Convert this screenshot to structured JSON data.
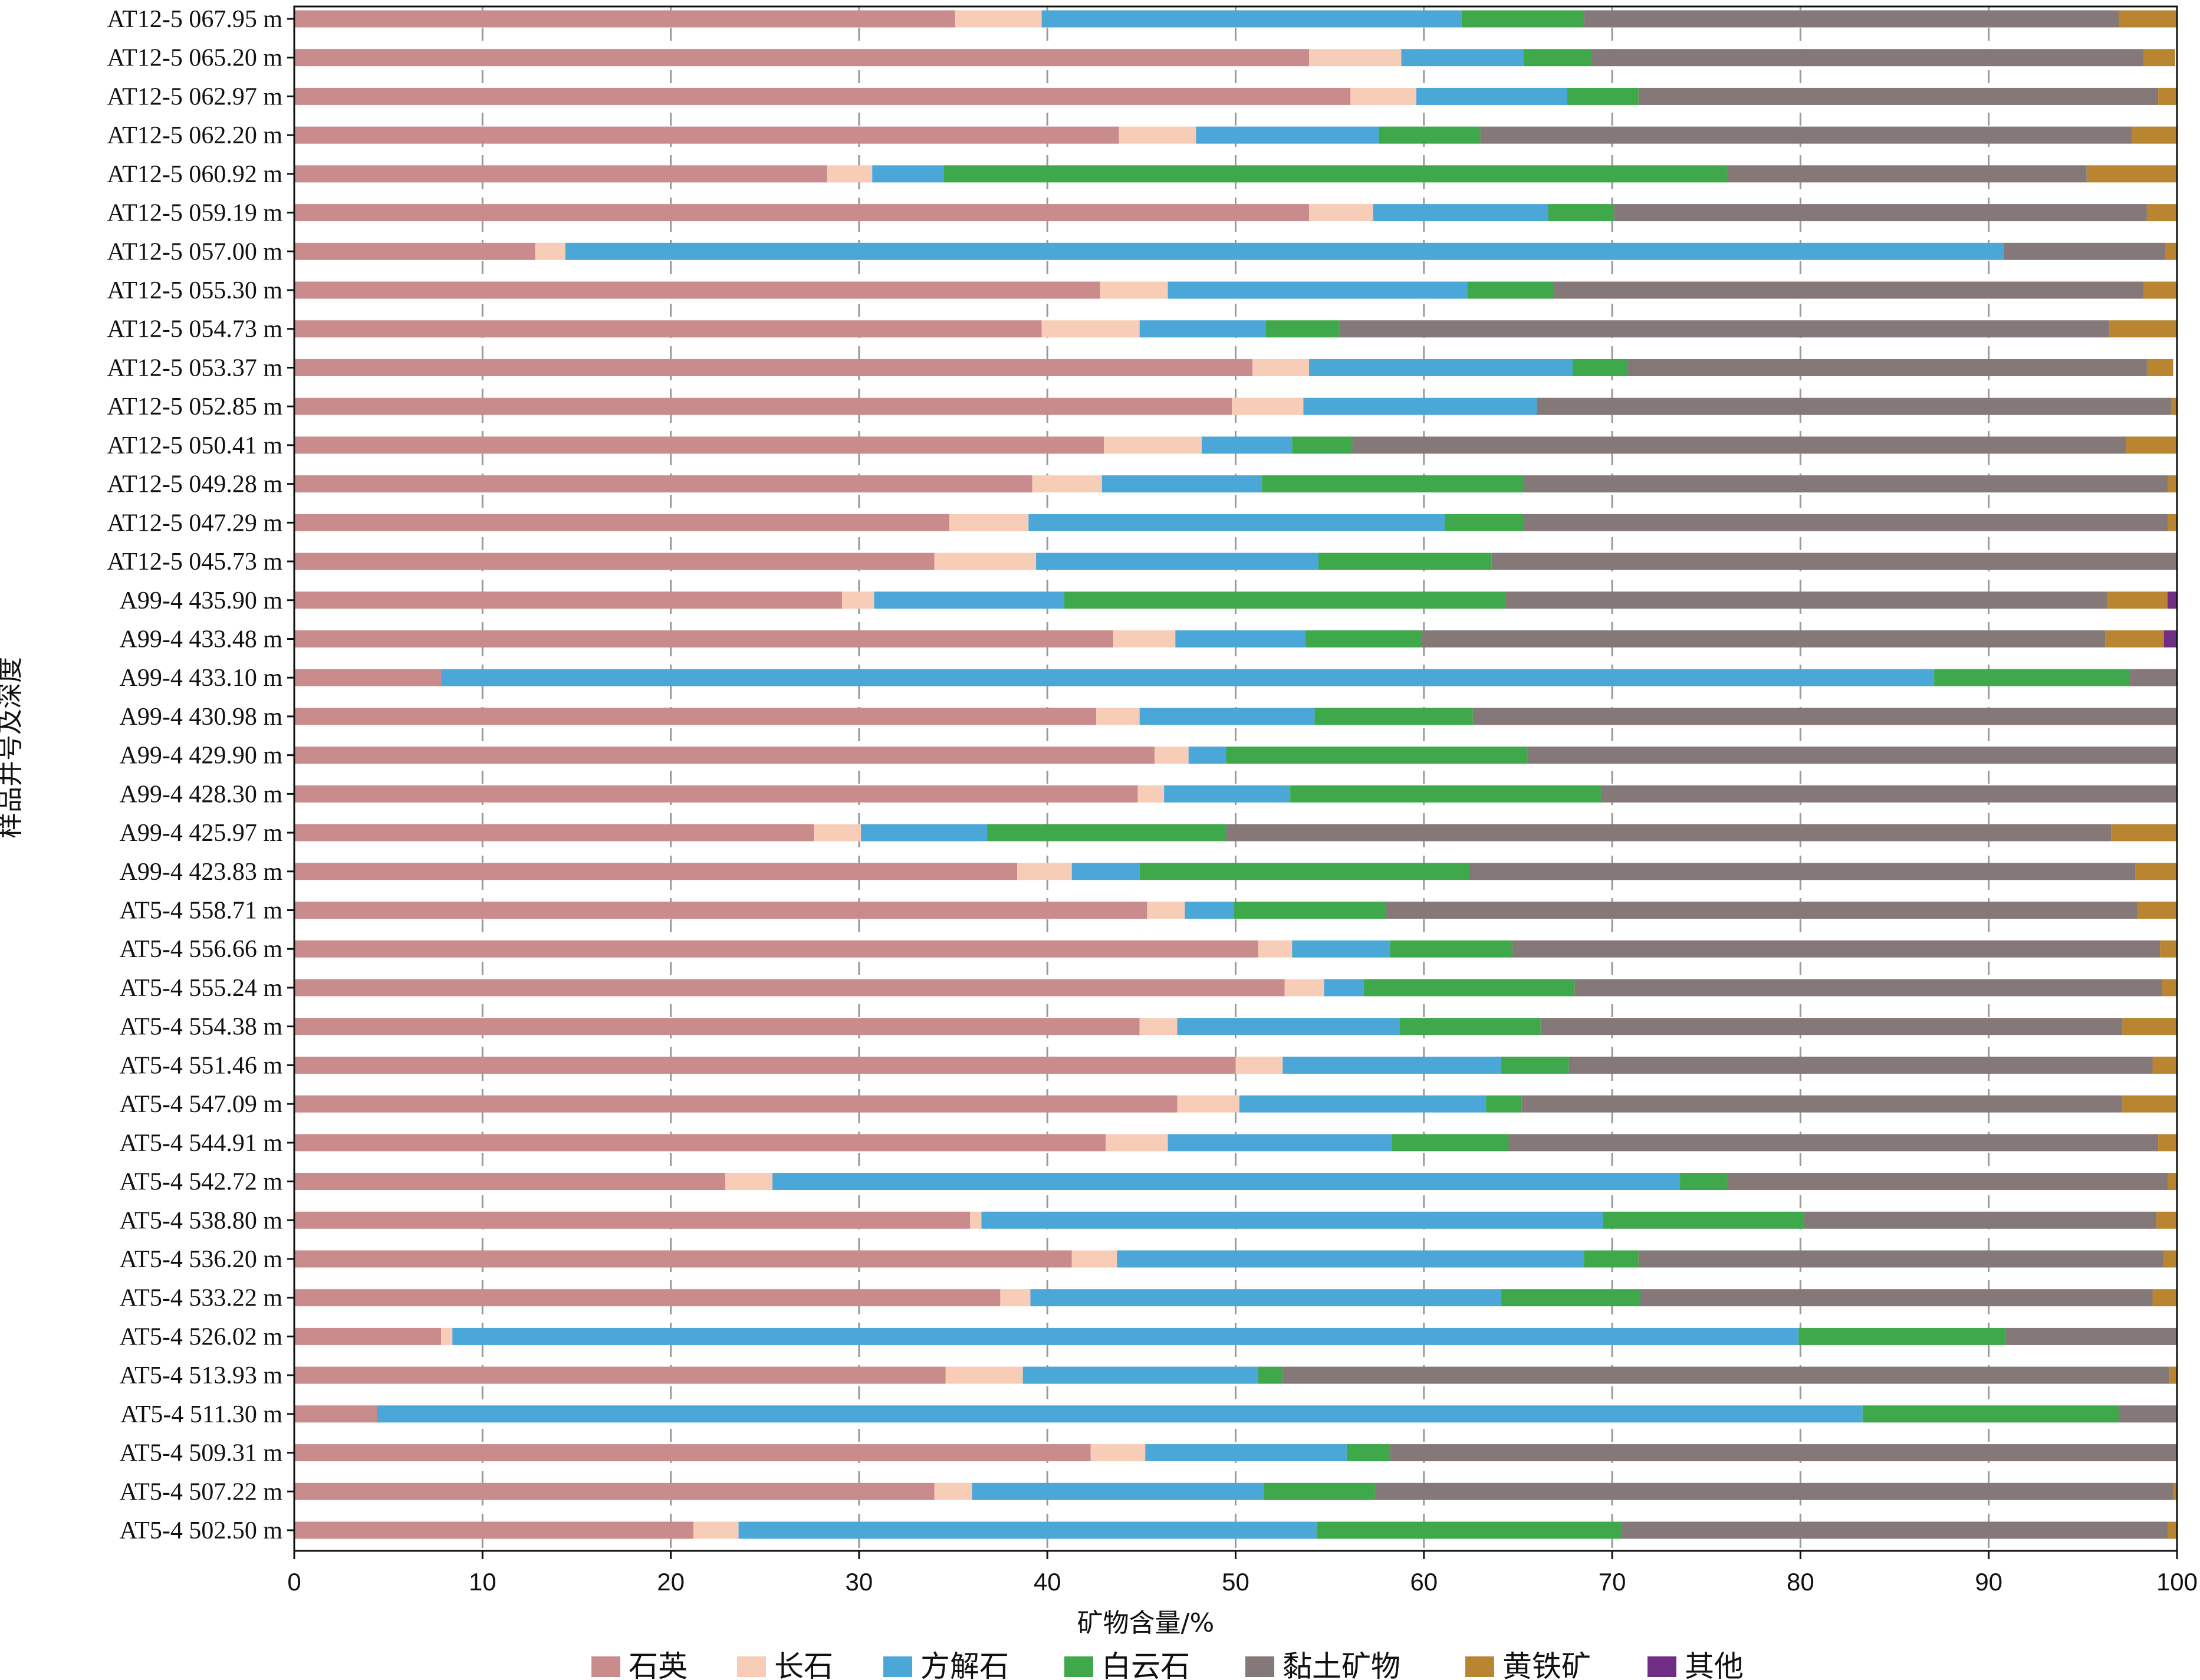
{
  "chart_data": {
    "type": "bar",
    "orientation": "horizontal",
    "stacked": true,
    "xlabel": "矿物含量/%",
    "ylabel": "样品井号及深度",
    "xlim": [
      0,
      100
    ],
    "xticks": [
      "0",
      "10",
      "20",
      "30",
      "40",
      "50",
      "60",
      "70",
      "80",
      "90",
      "100"
    ],
    "grid": "vertical dashed",
    "legend_position": "bottom",
    "categories": [
      "AT12-5 067.95 m",
      "AT12-5 065.20 m",
      "AT12-5 062.97 m",
      "AT12-5 062.20 m",
      "AT12-5 060.92 m",
      "AT12-5 059.19 m",
      "AT12-5 057.00 m",
      "AT12-5 055.30 m",
      "AT12-5 054.73 m",
      "AT12-5 053.37 m",
      "AT12-5 052.85 m",
      "AT12-5 050.41 m",
      "AT12-5 049.28 m",
      "AT12-5 047.29 m",
      "AT12-5 045.73 m",
      "A99-4 435.90 m",
      "A99-4 433.48 m",
      "A99-4 433.10 m",
      "A99-4 430.98 m",
      "A99-4 429.90 m",
      "A99-4 428.30 m",
      "A99-4 425.97 m",
      "A99-4 423.83 m",
      "AT5-4 558.71 m",
      "AT5-4 556.66 m",
      "AT5-4 555.24 m",
      "AT5-4 554.38 m",
      "AT5-4 551.46 m",
      "AT5-4 547.09 m",
      "AT5-4 544.91 m",
      "AT5-4 542.72 m",
      "AT5-4 538.80 m",
      "AT5-4 536.20 m",
      "AT5-4 533.22 m",
      "AT5-4 526.02 m",
      "AT5-4 513.93 m",
      "AT5-4 511.30 m",
      "AT5-4 509.31 m",
      "AT5-4 507.22 m",
      "AT5-4 502.50 m"
    ],
    "series": [
      {
        "name": "石英",
        "color": "#c98b8b",
        "values": [
          35.1,
          53.9,
          56.1,
          43.8,
          28.3,
          53.9,
          12.8,
          42.8,
          39.7,
          50.9,
          49.8,
          43.0,
          39.2,
          34.8,
          34.0,
          29.1,
          43.5,
          7.8,
          42.6,
          45.7,
          44.8,
          27.6,
          38.4,
          45.3,
          51.2,
          52.6,
          44.9,
          50.0,
          46.9,
          43.1,
          22.9,
          35.9,
          41.3,
          37.5,
          7.8,
          34.6,
          4.4,
          42.3,
          34.0,
          21.2
        ]
      },
      {
        "name": "长石",
        "color": "#f8cdb8",
        "values": [
          4.6,
          4.9,
          3.5,
          4.1,
          2.4,
          3.4,
          1.6,
          3.6,
          5.2,
          3.0,
          3.8,
          5.2,
          3.7,
          4.2,
          5.4,
          1.7,
          3.3,
          0.0,
          2.3,
          1.8,
          1.4,
          2.5,
          2.9,
          2.0,
          1.8,
          2.1,
          2.0,
          2.5,
          3.3,
          3.3,
          2.5,
          0.6,
          2.4,
          1.6,
          0.6,
          4.1,
          0.0,
          2.9,
          2.0,
          2.4
        ]
      },
      {
        "name": "方解石",
        "color": "#4ba7d8",
        "values": [
          22.3,
          6.5,
          8.0,
          9.7,
          3.8,
          9.3,
          76.4,
          15.9,
          6.7,
          14.0,
          12.4,
          4.8,
          8.5,
          22.1,
          15.0,
          10.1,
          6.9,
          79.3,
          9.3,
          2.0,
          6.7,
          6.7,
          3.6,
          2.6,
          5.2,
          2.1,
          11.8,
          11.6,
          13.1,
          11.9,
          48.2,
          33.0,
          24.8,
          25.0,
          71.5,
          12.5,
          78.9,
          10.7,
          15.5,
          30.7
        ]
      },
      {
        "name": "白云石",
        "color": "#3fa84a",
        "values": [
          6.5,
          3.6,
          3.8,
          5.4,
          41.6,
          3.5,
          0.0,
          4.6,
          3.9,
          2.9,
          0.0,
          3.2,
          13.9,
          4.2,
          9.2,
          23.4,
          6.2,
          10.4,
          8.4,
          16.0,
          16.5,
          12.7,
          17.5,
          8.1,
          6.5,
          11.2,
          7.5,
          3.6,
          1.9,
          6.2,
          2.5,
          10.7,
          2.9,
          7.4,
          11.0,
          1.3,
          13.6,
          2.3,
          5.9,
          16.2
        ]
      },
      {
        "name": "黏土矿物",
        "color": "#857878",
        "values": [
          28.4,
          29.3,
          27.6,
          34.6,
          19.1,
          28.3,
          8.6,
          31.3,
          40.9,
          27.6,
          33.7,
          41.1,
          34.2,
          34.2,
          36.4,
          32.0,
          36.3,
          2.5,
          37.4,
          34.5,
          30.6,
          47.0,
          35.4,
          39.9,
          34.4,
          31.2,
          30.9,
          31.0,
          31.9,
          34.5,
          23.4,
          18.7,
          27.9,
          27.2,
          9.1,
          47.1,
          3.1,
          41.8,
          42.4,
          29.0
        ]
      },
      {
        "name": "黄铁矿",
        "color": "#b98530",
        "values": [
          3.1,
          1.7,
          1.0,
          2.4,
          4.8,
          1.6,
          0.6,
          1.8,
          3.6,
          1.4,
          1.3,
          2.7,
          0.5,
          0.5,
          0.0,
          3.2,
          3.1,
          0.0,
          0.0,
          0.0,
          0.0,
          3.5,
          2.2,
          2.1,
          0.9,
          0.8,
          2.9,
          1.3,
          2.9,
          1.0,
          0.5,
          1.1,
          0.7,
          1.3,
          0.0,
          0.4,
          0.0,
          0.0,
          0.2,
          0.5
        ]
      },
      {
        "name": "其他",
        "color": "#6f2d84",
        "values": [
          0,
          0,
          0,
          0,
          0,
          0,
          0,
          0,
          0,
          0,
          0,
          0,
          0,
          0,
          0,
          0.5,
          0.7,
          0,
          0,
          0,
          0,
          0,
          0,
          0,
          0,
          0,
          0,
          0,
          0,
          0,
          0,
          0,
          0,
          0,
          0,
          0,
          0,
          0,
          0,
          0
        ]
      }
    ]
  }
}
